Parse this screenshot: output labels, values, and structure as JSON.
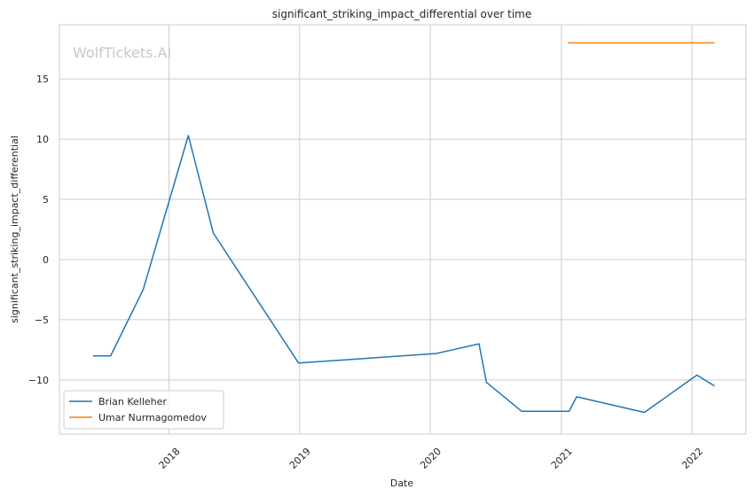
{
  "chart_data": {
    "type": "line",
    "title": "significant_striking_impact_differential over time",
    "xlabel": "Date",
    "ylabel": "significant_striking_impact_differential",
    "watermark": "WolfTickets.AI",
    "xlim": [
      "2017-03-01",
      "2022-06-01"
    ],
    "ylim": [
      -14.5,
      19.5
    ],
    "x_ticks": [
      "2018-01-01",
      "2019-01-01",
      "2020-01-01",
      "2021-01-01",
      "2022-01-01"
    ],
    "x_tick_labels": [
      "2018",
      "2019",
      "2020",
      "2021",
      "2022"
    ],
    "y_ticks": [
      -10,
      -5,
      0,
      5,
      10,
      15
    ],
    "y_tick_labels": [
      "−10",
      "−5",
      "0",
      "5",
      "10",
      "15"
    ],
    "grid": true,
    "legend_position": "lower-left",
    "series": [
      {
        "name": "Brian Kelleher",
        "color": "#1f77b4",
        "points": [
          {
            "x": "2017-06-03",
            "y": -8.0
          },
          {
            "x": "2017-07-22",
            "y": -8.0
          },
          {
            "x": "2017-10-21",
            "y": -2.5
          },
          {
            "x": "2018-02-24",
            "y": 10.3
          },
          {
            "x": "2018-05-05",
            "y": 2.2
          },
          {
            "x": "2018-12-29",
            "y": -8.6
          },
          {
            "x": "2020-01-18",
            "y": -7.8
          },
          {
            "x": "2020-05-16",
            "y": -7.0
          },
          {
            "x": "2020-06-06",
            "y": -10.2
          },
          {
            "x": "2020-09-12",
            "y": -12.6
          },
          {
            "x": "2021-01-23",
            "y": -12.6
          },
          {
            "x": "2021-02-13",
            "y": -11.4
          },
          {
            "x": "2021-08-21",
            "y": -12.7
          },
          {
            "x": "2022-01-15",
            "y": -9.6
          },
          {
            "x": "2022-03-05",
            "y": -10.5
          }
        ]
      },
      {
        "name": "Umar Nurmagomedov",
        "color": "#ff7f0e",
        "points": [
          {
            "x": "2021-01-20",
            "y": 18.0
          },
          {
            "x": "2022-03-05",
            "y": 18.0
          }
        ]
      }
    ]
  }
}
